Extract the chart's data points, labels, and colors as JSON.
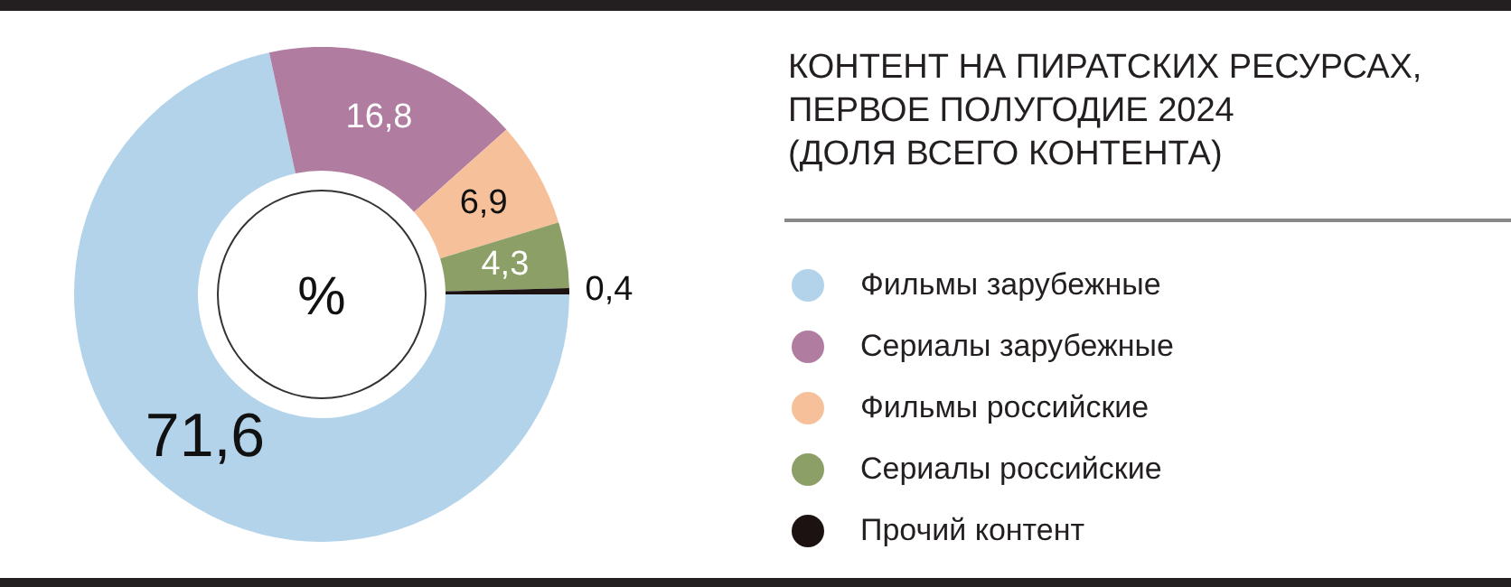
{
  "chart_data": {
    "type": "donut",
    "title": "КОНТЕНТ НА ПИРАТСКИХ РЕСУРСАХ, ПЕРВОЕ ПОЛУГОДИЕ 2024",
    "subtitle": "(ДОЛЯ ВСЕГО КОНТЕНТА)",
    "categories": [
      "Фильмы зарубежные",
      "Сериалы зарубежные",
      "Фильмы российские",
      "Сериалы российские",
      "Прочий контент"
    ],
    "values": [
      71.6,
      16.8,
      6.9,
      4.3,
      0.4
    ],
    "colors": [
      "#b2d3ea",
      "#b07c9f",
      "#f6c19a",
      "#8b9f66",
      "#1c1212"
    ],
    "value_labels": [
      "71,6",
      "16,8",
      "6,9",
      "4,3",
      "0,4"
    ],
    "annotations": [
      "%"
    ],
    "legend": "right"
  }
}
